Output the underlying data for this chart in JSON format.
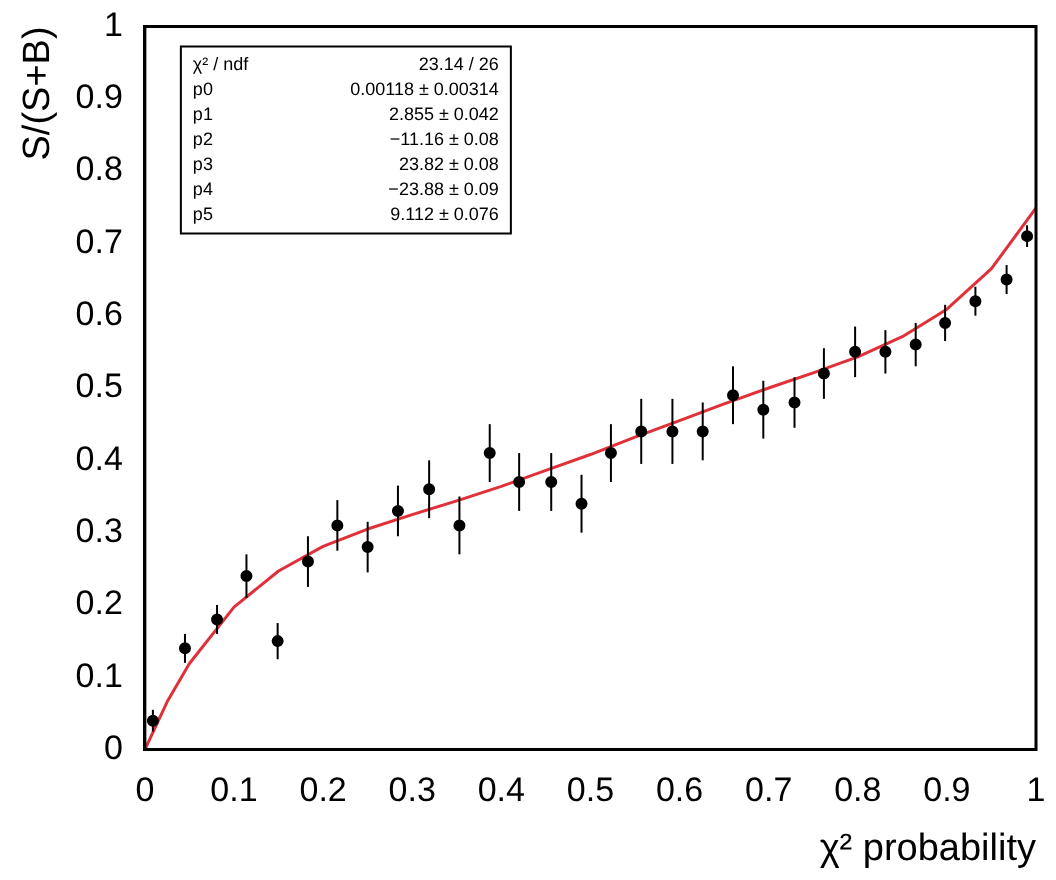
{
  "chart_data": {
    "type": "scatter",
    "xlabel": "χ² probability",
    "ylabel": "S/(S+B)",
    "xlim": [
      0,
      1
    ],
    "xticks": [
      0,
      0.1,
      0.2,
      0.3,
      0.4,
      0.5,
      0.6,
      0.7,
      0.8,
      0.9,
      1
    ],
    "ylim": [
      0,
      1
    ],
    "yticks": [
      0,
      0.1,
      0.2,
      0.3,
      0.4,
      0.5,
      0.6,
      0.7,
      0.8,
      0.9,
      1
    ],
    "grid": false,
    "legend": false,
    "marker": "circle",
    "annotations": [
      "χ² / ndf    23.14 / 26",
      "p0    0.00118 ± 0.00314",
      "p1    2.855 ± 0.042",
      "p2    −11.16 ± 0.08",
      "p3    23.82 ± 0.08",
      "p4    −23.88 ± 0.09",
      "p5    9.112 ± 0.076"
    ],
    "series": [
      {
        "color": "#000000",
        "x": [
          0.009,
          0.045,
          0.081,
          0.114,
          0.149,
          0.183,
          0.216,
          0.25,
          0.284,
          0.319,
          0.353,
          0.387,
          0.42,
          0.456,
          0.49,
          0.523,
          0.557,
          0.592,
          0.626,
          0.66,
          0.694,
          0.729,
          0.762,
          0.797,
          0.831,
          0.865,
          0.898,
          0.932,
          0.967,
          0.99
        ],
        "values": [
          0.04,
          0.14,
          0.18,
          0.24,
          0.15,
          0.26,
          0.31,
          0.28,
          0.33,
          0.36,
          0.31,
          0.41,
          0.37,
          0.37,
          0.34,
          0.41,
          0.44,
          0.44,
          0.44,
          0.49,
          0.47,
          0.48,
          0.52,
          0.55,
          0.55,
          0.56,
          0.59,
          0.62,
          0.65,
          0.71
        ],
        "errors": [
          0.015,
          0.02,
          0.02,
          0.03,
          0.025,
          0.035,
          0.035,
          0.035,
          0.035,
          0.04,
          0.04,
          0.04,
          0.04,
          0.04,
          0.04,
          0.04,
          0.045,
          0.045,
          0.04,
          0.04,
          0.04,
          0.035,
          0.035,
          0.035,
          0.03,
          0.03,
          0.025,
          0.02,
          0.02,
          0.015
        ]
      },
      {
        "type": "line",
        "color": "#e0303a",
        "marker": "none",
        "line_style": "solid",
        "x": [
          0,
          0.025,
          0.05,
          0.1,
          0.15,
          0.2,
          0.25,
          0.3,
          0.35,
          0.4,
          0.45,
          0.5,
          0.55,
          0.6,
          0.65,
          0.7,
          0.75,
          0.8,
          0.85,
          0.9,
          0.95,
          1
        ],
        "values": [
          0,
          0.066,
          0.119,
          0.197,
          0.247,
          0.281,
          0.305,
          0.325,
          0.344,
          0.364,
          0.386,
          0.408,
          0.432,
          0.455,
          0.478,
          0.5,
          0.521,
          0.543,
          0.571,
          0.609,
          0.665,
          0.749
        ]
      }
    ]
  }
}
